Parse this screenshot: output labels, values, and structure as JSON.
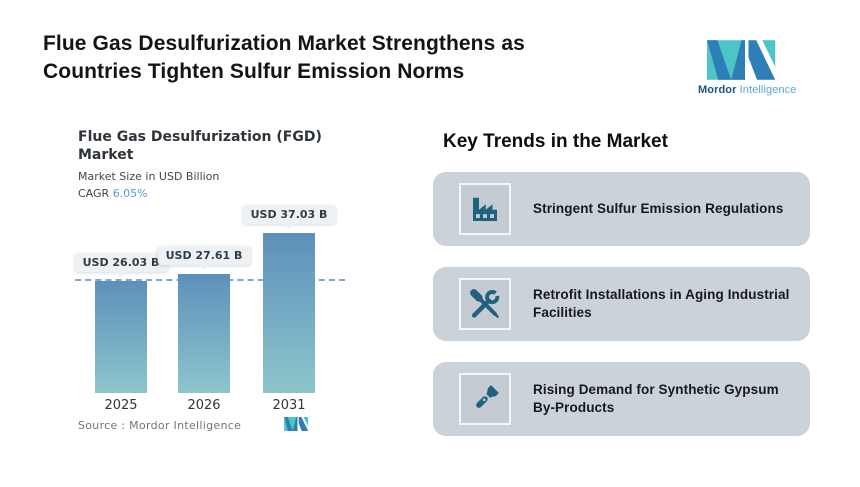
{
  "header": {
    "title_line1": "Flue Gas Desulfurization Market Strengthens as",
    "title_line2": "Countries Tighten Sulfur Emission Norms",
    "brand": {
      "name_bold": "Mordor",
      "name_light": "Intelligence"
    }
  },
  "chart": {
    "title_line1": "Flue Gas Desulfurization (FGD)",
    "title_line2": "Market",
    "subtitle": "Market Size in USD Billion",
    "cagr_label": "CAGR",
    "cagr_value": "6.05%",
    "source": "Source : Mordor Intelligence"
  },
  "chart_data": {
    "type": "bar",
    "title": "Flue Gas Desulfurization (FGD) Market",
    "ylabel": "Market Size in USD Billion",
    "categories": [
      "2025",
      "2026",
      "2031"
    ],
    "values": [
      26.03,
      27.61,
      37.03
    ],
    "bar_labels": [
      "USD 26.03 B",
      "USD 27.61 B",
      "USD 37.03 B"
    ],
    "cagr_pct": 6.05,
    "reference_line_value": 26.03,
    "ylim": [
      0,
      37.03
    ],
    "grid": false,
    "legend": false
  },
  "trends": {
    "heading": "Key Trends in the Market",
    "items": [
      {
        "icon": "factory-icon",
        "text": "Stringent Sulfur Emission Regulations"
      },
      {
        "icon": "tools-icon",
        "text": "Retrofit Installations in Aging Industrial Facilities"
      },
      {
        "icon": "flashlight-icon",
        "text": "Rising Demand for Synthetic Gypsum By-Products"
      }
    ]
  },
  "colors": {
    "bar_top": "#5d90ba",
    "bar_bottom": "#8cc6cc",
    "dashed_line": "#7fa6cb",
    "card_bg": "#ccd2d9",
    "icon": "#1f617f",
    "cagr_accent": "#5b9bd5",
    "brand_teal": "#4cc4c8",
    "brand_blue": "#2e7fb6",
    "brand_dark": "#1b5480"
  }
}
